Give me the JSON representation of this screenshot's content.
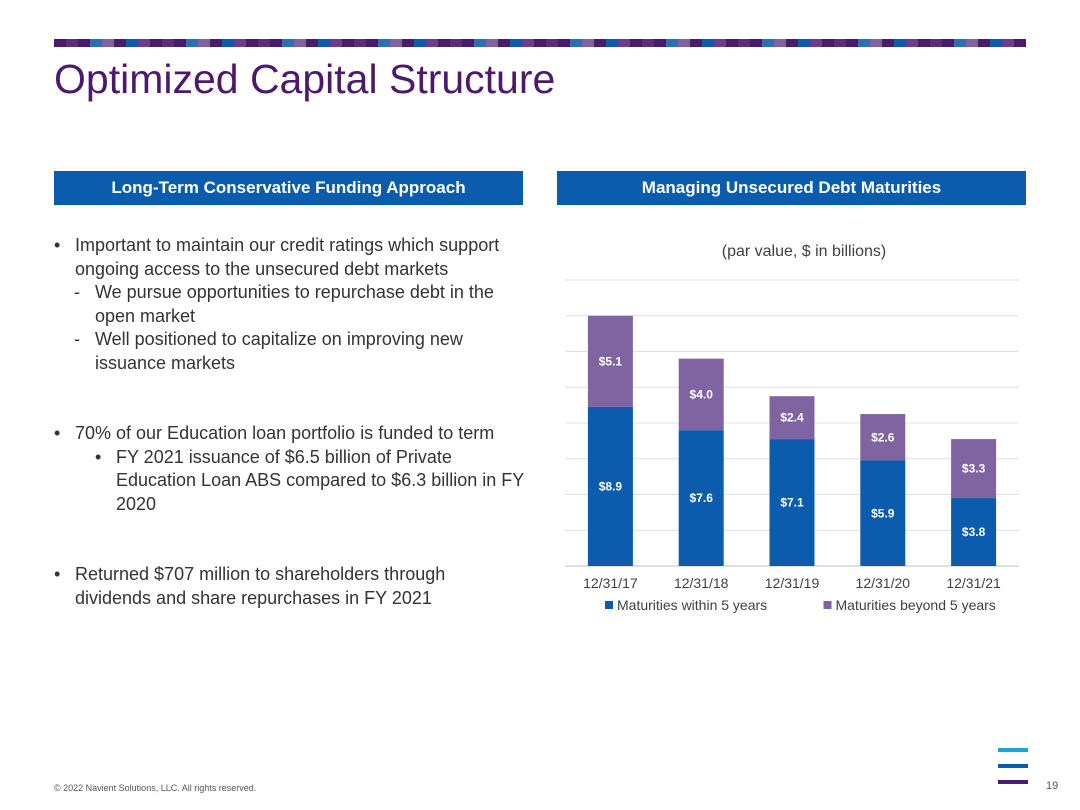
{
  "slide": {
    "title": "Optimized Capital Structure",
    "page_number": "19",
    "footer": "© 2022 Navient Solutions, LLC. All rights reserved."
  },
  "left_panel": {
    "header": "Long-Term Conservative Funding Approach",
    "bullets": [
      {
        "text": "Important to maintain our credit ratings which support ongoing access to the unsecured debt markets",
        "sub": [
          "We pursue opportunities to repurchase debt in the open market",
          "Well positioned to capitalize on improving new issuance markets"
        ]
      },
      {
        "text": "70% of our Education loan portfolio is funded to term",
        "sub": [
          "FY 2021 issuance of $6.5 billion of Private Education Loan ABS compared to $6.3 billion in FY 2020"
        ]
      },
      {
        "text": "Returned $707 million to shareholders through dividends and share repurchases in FY 2021",
        "sub": []
      }
    ]
  },
  "right_panel": {
    "header": "Managing Unsecured Debt Maturities"
  },
  "colors": {
    "brand_purple": "#4b1a6b",
    "header_blue": "#0b5cad",
    "series_within": "#0b5cad",
    "series_beyond": "#8064a2"
  },
  "chart_data": {
    "type": "bar",
    "stacked": true,
    "subtitle": "(par value, $ in billions)",
    "categories": [
      "12/31/17",
      "12/31/18",
      "12/31/19",
      "12/31/20",
      "12/31/21"
    ],
    "series": [
      {
        "name": "Maturities within 5 years",
        "values": [
          8.9,
          7.6,
          7.1,
          5.9,
          3.8
        ],
        "labels": [
          "$8.9",
          "$7.6",
          "$7.1",
          "$5.9",
          "$3.8"
        ]
      },
      {
        "name": "Maturities beyond 5 years",
        "values": [
          5.1,
          4.0,
          2.4,
          2.6,
          3.3
        ],
        "labels": [
          "$5.1",
          "$4.0",
          "$2.4",
          "$2.6",
          "$3.3"
        ]
      }
    ],
    "ylim": [
      0,
      16
    ],
    "grid": true,
    "legend": "bottom"
  }
}
